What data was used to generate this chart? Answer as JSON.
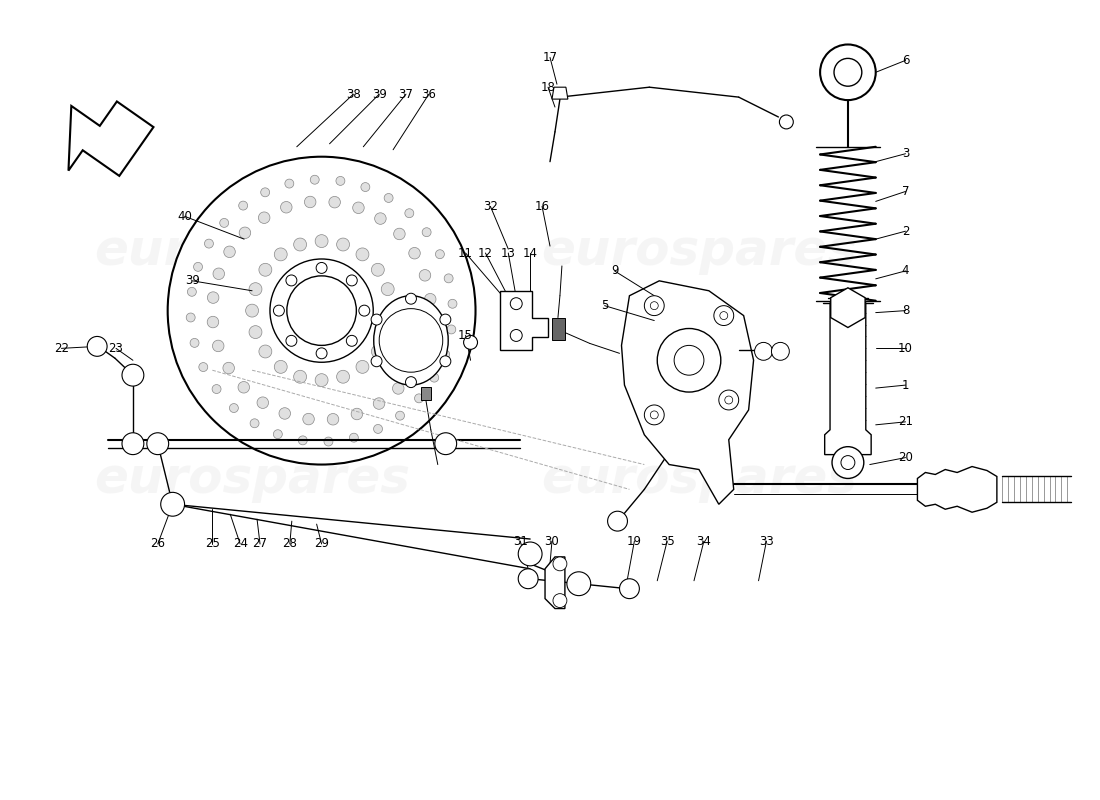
{
  "bg": "#ffffff",
  "wm_color": "#cccccc",
  "wm_text": "eurospares",
  "fig_w": 11.0,
  "fig_h": 8.0,
  "dpi": 100,
  "line_color": "#000000",
  "label_fontsize": 8.5
}
